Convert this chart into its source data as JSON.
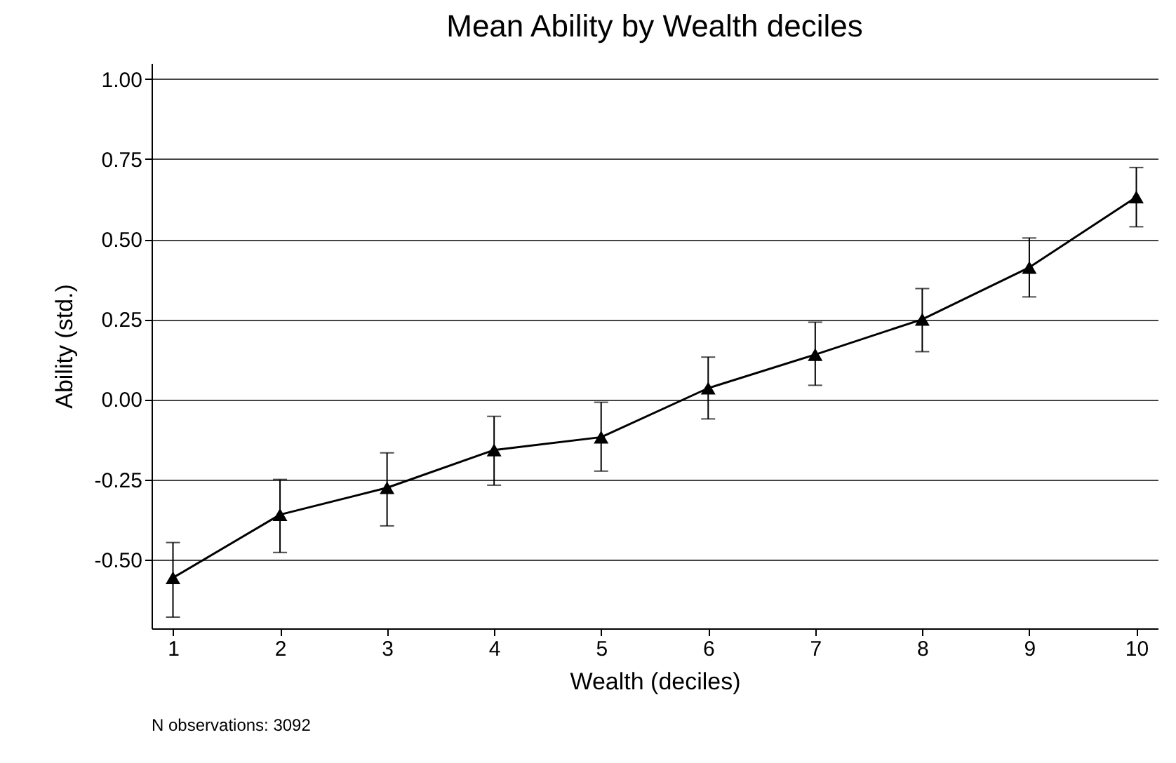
{
  "chart_data": {
    "type": "line",
    "title": "Mean Ability by Wealth deciles",
    "xlabel": "Wealth (deciles)",
    "ylabel": "Ability (std.)",
    "x": [
      1,
      2,
      3,
      4,
      5,
      6,
      7,
      8,
      9,
      10
    ],
    "series": [
      {
        "color": "#000000",
        "values": [
          -0.557,
          -0.36,
          -0.276,
          -0.158,
          -0.118,
          0.035,
          0.14,
          0.25,
          0.412,
          0.632
        ],
        "errors": [
          [
            -0.68,
            -0.447
          ],
          [
            -0.478,
            -0.25
          ],
          [
            -0.395,
            -0.167
          ],
          [
            -0.268,
            -0.053
          ],
          [
            -0.224,
            -0.009
          ],
          [
            -0.061,
            0.132
          ],
          [
            0.044,
            0.241
          ],
          [
            0.149,
            0.346
          ],
          [
            0.32,
            0.504
          ],
          [
            0.539,
            0.724
          ]
        ]
      }
    ],
    "xlim": [
      0.8,
      10.2
    ],
    "xticks": [
      1,
      2,
      3,
      4,
      5,
      6,
      7,
      8,
      9,
      10
    ],
    "ylim": [
      -0.715,
      1.05
    ],
    "yticks": [
      {
        "value": -0.5,
        "label": "-0.50"
      },
      {
        "value": -0.25,
        "label": "-0.25"
      },
      {
        "value": 0,
        "label": "0.00"
      },
      {
        "value": 0.25,
        "label": "0.25"
      },
      {
        "value": 0.5,
        "label": "0.50"
      },
      {
        "value": 0.75,
        "label": "0.75"
      },
      {
        "value": 1,
        "label": "1.00"
      }
    ],
    "grid": "y",
    "marker": "triangle",
    "line_style": "solid",
    "annotations": [
      "N observations: 3092"
    ]
  }
}
